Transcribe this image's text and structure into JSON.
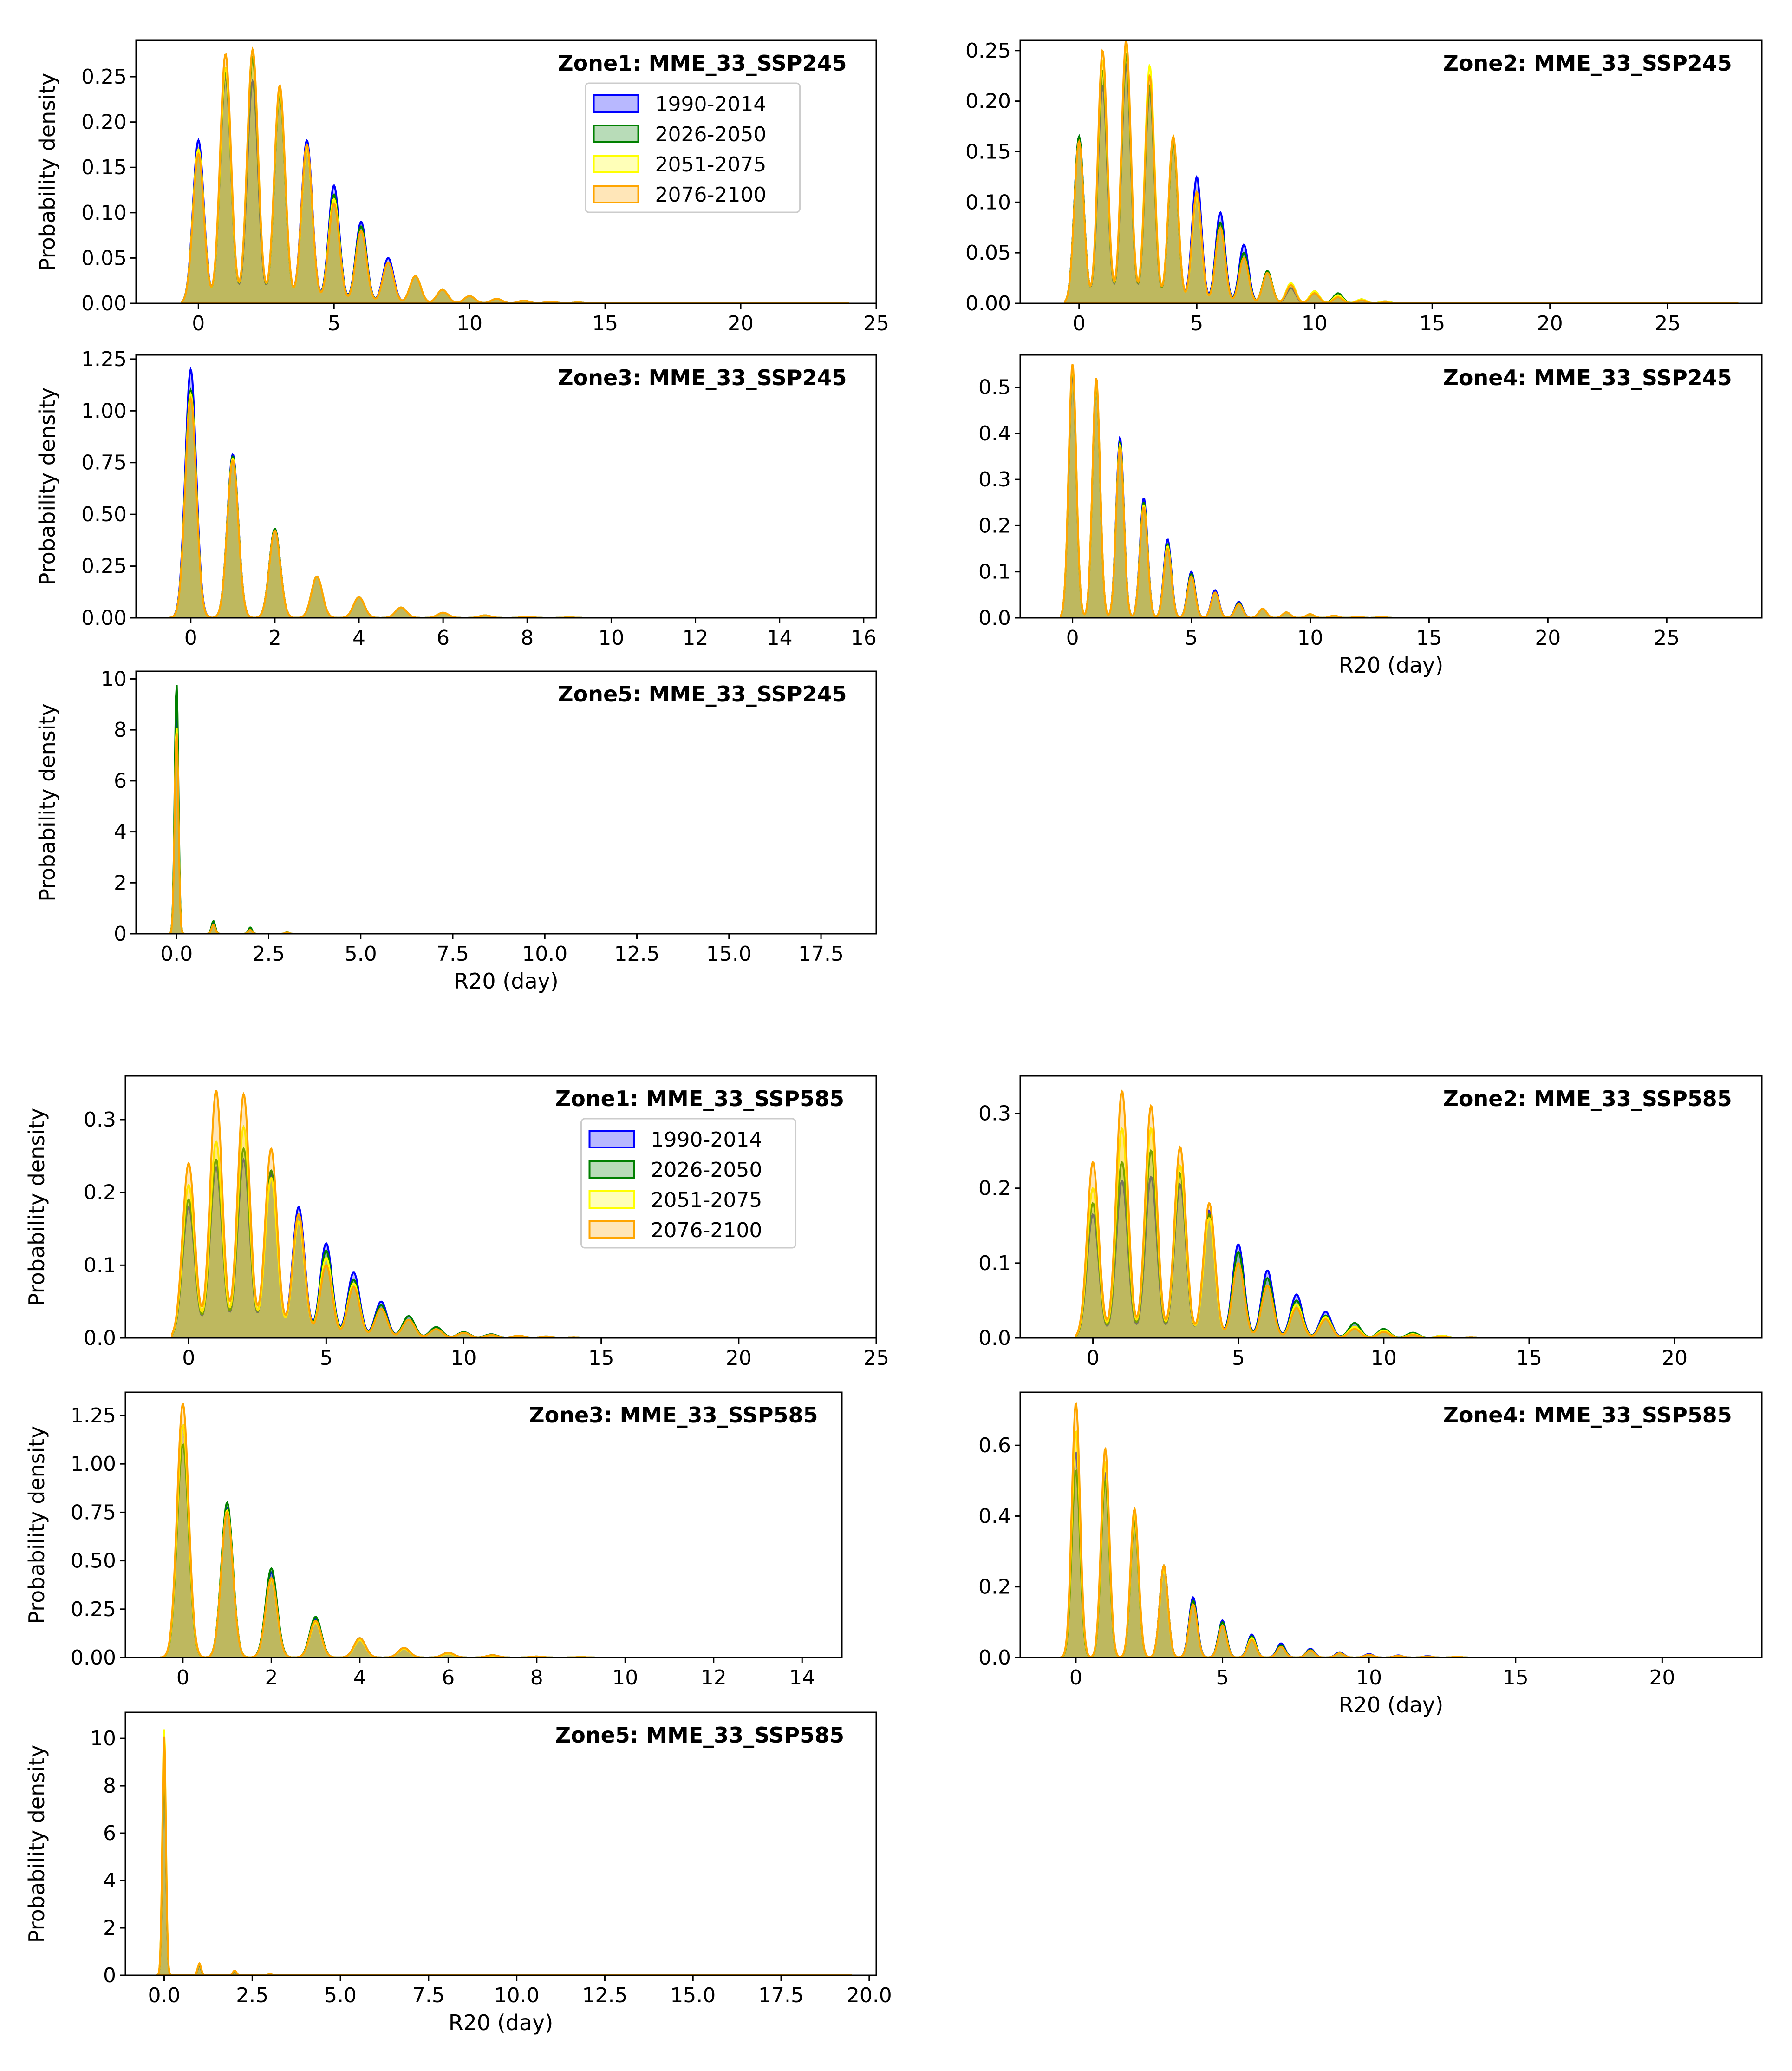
{
  "colors": {
    "1990-2014": "#0000ff",
    "2026-2050": "#008000",
    "2051-2075": "#ffff00",
    "2076-2100": "#ffa500"
  },
  "chart_data": [
    {
      "type": "area",
      "title": "Zone1: MME_33_SSP245",
      "xlabel": "",
      "ylabel": "Probability density",
      "xlim": [
        -2.3,
        25
      ],
      "ylim": [
        0,
        0.29
      ],
      "xticks": [
        0,
        5,
        10,
        15,
        20,
        25
      ],
      "yticks": [
        0.0,
        0.05,
        0.1,
        0.15,
        0.2,
        0.25
      ],
      "ytick_decimals": 2,
      "legend": "top-right",
      "xmin": -0.6,
      "xmax": 24,
      "sigma": 0.2,
      "x": [
        0,
        1,
        2,
        3,
        4,
        5,
        6,
        7,
        8,
        9,
        10,
        11,
        12,
        13,
        14
      ],
      "series": [
        {
          "name": "1990-2014",
          "values": [
            0.18,
            0.25,
            0.245,
            0.23,
            0.18,
            0.13,
            0.09,
            0.05,
            0.03,
            0.015,
            0.008,
            0.005,
            0.003,
            0.002,
            0.001
          ]
        },
        {
          "name": "2026-2050",
          "values": [
            0.17,
            0.255,
            0.27,
            0.23,
            0.17,
            0.12,
            0.085,
            0.045,
            0.03,
            0.015,
            0.008,
            0.005,
            0.003,
            0.002,
            0.001
          ]
        },
        {
          "name": "2051-2075",
          "values": [
            0.17,
            0.26,
            0.28,
            0.235,
            0.17,
            0.115,
            0.08,
            0.045,
            0.03,
            0.015,
            0.008,
            0.005,
            0.003,
            0.002,
            0.001
          ]
        },
        {
          "name": "2076-2100",
          "values": [
            0.165,
            0.275,
            0.28,
            0.24,
            0.175,
            0.11,
            0.08,
            0.045,
            0.03,
            0.015,
            0.008,
            0.005,
            0.003,
            0.002,
            0.001
          ]
        }
      ]
    },
    {
      "type": "area",
      "title": "Zone2: MME_33_SSP245",
      "xlabel": "",
      "ylabel": "",
      "xlim": [
        -2.5,
        29
      ],
      "ylim": [
        0,
        0.26
      ],
      "xticks": [
        0,
        5,
        10,
        15,
        20,
        25
      ],
      "yticks": [
        0.0,
        0.05,
        0.1,
        0.15,
        0.2,
        0.25
      ],
      "ytick_decimals": 2,
      "legend": "none",
      "xmin": -0.6,
      "xmax": 28,
      "sigma": 0.2,
      "x": [
        0,
        1,
        2,
        3,
        4,
        5,
        6,
        7,
        8,
        9,
        10,
        11,
        12,
        13
      ],
      "series": [
        {
          "name": "1990-2014",
          "values": [
            0.165,
            0.215,
            0.235,
            0.21,
            0.16,
            0.125,
            0.09,
            0.058,
            0.03,
            0.015,
            0.01,
            0.006,
            0.003,
            0.001
          ]
        },
        {
          "name": "2026-2050",
          "values": [
            0.165,
            0.23,
            0.245,
            0.215,
            0.16,
            0.11,
            0.08,
            0.05,
            0.032,
            0.02,
            0.012,
            0.01,
            0.004,
            0.002
          ]
        },
        {
          "name": "2051-2075",
          "values": [
            0.16,
            0.24,
            0.255,
            0.235,
            0.165,
            0.105,
            0.075,
            0.045,
            0.03,
            0.02,
            0.012,
            0.008,
            0.004,
            0.002
          ]
        },
        {
          "name": "2076-2100",
          "values": [
            0.16,
            0.25,
            0.26,
            0.225,
            0.165,
            0.11,
            0.075,
            0.045,
            0.03,
            0.018,
            0.01,
            0.006,
            0.003,
            0.001
          ]
        }
      ]
    },
    {
      "type": "area",
      "title": "Zone3: MME_33_SSP245",
      "xlabel": "",
      "ylabel": "Probability density",
      "xlim": [
        -1.3,
        16.3
      ],
      "ylim": [
        0,
        1.27
      ],
      "xticks": [
        0,
        2,
        4,
        6,
        8,
        10,
        12,
        14,
        16
      ],
      "yticks": [
        0.0,
        0.25,
        0.5,
        0.75,
        1.0,
        1.25
      ],
      "ytick_decimals": 2,
      "legend": "none",
      "xmin": -0.5,
      "xmax": 15.5,
      "sigma": 0.13,
      "x": [
        0,
        1,
        2,
        3,
        4,
        5,
        6,
        7,
        8,
        9
      ],
      "series": [
        {
          "name": "1990-2014",
          "values": [
            1.2,
            0.79,
            0.43,
            0.2,
            0.1,
            0.05,
            0.025,
            0.012,
            0.005,
            0.002
          ]
        },
        {
          "name": "2026-2050",
          "values": [
            1.1,
            0.78,
            0.43,
            0.2,
            0.1,
            0.05,
            0.025,
            0.012,
            0.005,
            0.002
          ]
        },
        {
          "name": "2051-2075",
          "values": [
            1.08,
            0.77,
            0.42,
            0.2,
            0.1,
            0.05,
            0.025,
            0.012,
            0.005,
            0.002
          ]
        },
        {
          "name": "2076-2100",
          "values": [
            1.06,
            0.76,
            0.42,
            0.2,
            0.1,
            0.05,
            0.025,
            0.012,
            0.005,
            0.002
          ]
        }
      ]
    },
    {
      "type": "area",
      "title": "Zone4: MME_33_SSP245",
      "xlabel": "R20 (day)",
      "ylabel": "",
      "xlim": [
        -2.2,
        29
      ],
      "ylim": [
        0,
        0.57
      ],
      "xticks": [
        0,
        5,
        10,
        15,
        20,
        25
      ],
      "yticks": [
        0.0,
        0.1,
        0.2,
        0.3,
        0.4,
        0.5
      ],
      "ytick_decimals": 1,
      "legend": "none",
      "xmin": -0.5,
      "xmax": 27.5,
      "sigma": 0.16,
      "x": [
        0,
        1,
        2,
        3,
        4,
        5,
        6,
        7,
        8,
        9,
        10,
        11,
        12,
        13
      ],
      "series": [
        {
          "name": "1990-2014",
          "values": [
            0.53,
            0.51,
            0.39,
            0.26,
            0.17,
            0.1,
            0.06,
            0.035,
            0.02,
            0.012,
            0.008,
            0.005,
            0.003,
            0.002
          ]
        },
        {
          "name": "2026-2050",
          "values": [
            0.54,
            0.51,
            0.38,
            0.25,
            0.16,
            0.095,
            0.055,
            0.032,
            0.02,
            0.012,
            0.008,
            0.005,
            0.003,
            0.002
          ]
        },
        {
          "name": "2051-2075",
          "values": [
            0.545,
            0.515,
            0.375,
            0.245,
            0.155,
            0.09,
            0.055,
            0.03,
            0.02,
            0.012,
            0.008,
            0.005,
            0.003,
            0.002
          ]
        },
        {
          "name": "2076-2100",
          "values": [
            0.55,
            0.52,
            0.37,
            0.24,
            0.15,
            0.09,
            0.055,
            0.03,
            0.02,
            0.012,
            0.008,
            0.005,
            0.003,
            0.002
          ]
        }
      ]
    },
    {
      "type": "area",
      "title": "Zone5: MME_33_SSP245",
      "xlabel": "R20 (day)",
      "ylabel": "Probability density",
      "xlim": [
        -1.1,
        19
      ],
      "ylim": [
        0,
        10.3
      ],
      "xticks": [
        0.0,
        2.5,
        5.0,
        7.5,
        10.0,
        12.5,
        15.0,
        17.5
      ],
      "yticks": [
        0,
        2,
        4,
        6,
        8,
        10
      ],
      "ytick_decimals": 0,
      "xtick_decimals": 1,
      "legend": "none",
      "xmin": -0.2,
      "xmax": 18.2,
      "sigma": 0.05,
      "x": [
        0,
        1,
        2,
        3
      ],
      "series": [
        {
          "name": "1990-2014",
          "values": [
            8.6,
            0.4,
            0.2,
            0.05
          ]
        },
        {
          "name": "2026-2050",
          "values": [
            9.8,
            0.5,
            0.25,
            0.06
          ]
        },
        {
          "name": "2051-2075",
          "values": [
            8.1,
            0.35,
            0.15,
            0.05
          ]
        },
        {
          "name": "2076-2100",
          "values": [
            7.9,
            0.35,
            0.15,
            0.05
          ]
        }
      ]
    },
    {
      "type": "area",
      "title": "Zone1: MME_33_SSP585",
      "xlabel": "",
      "ylabel": "Probability density",
      "xlim": [
        -2.3,
        25
      ],
      "ylim": [
        0,
        0.36
      ],
      "xticks": [
        0,
        5,
        10,
        15,
        20,
        25
      ],
      "yticks": [
        0.0,
        0.1,
        0.2,
        0.3
      ],
      "ytick_decimals": 1,
      "legend": "top-right",
      "xmin": -0.6,
      "xmax": 24,
      "sigma": 0.22,
      "x": [
        0,
        1,
        2,
        3,
        4,
        5,
        6,
        7,
        8,
        9,
        10,
        11,
        12,
        13,
        14
      ],
      "series": [
        {
          "name": "1990-2014",
          "values": [
            0.18,
            0.235,
            0.245,
            0.225,
            0.18,
            0.13,
            0.09,
            0.05,
            0.03,
            0.015,
            0.008,
            0.005,
            0.003,
            0.002,
            0.001
          ]
        },
        {
          "name": "2026-2050",
          "values": [
            0.19,
            0.245,
            0.26,
            0.23,
            0.17,
            0.12,
            0.08,
            0.045,
            0.03,
            0.015,
            0.008,
            0.005,
            0.003,
            0.002,
            0.001
          ]
        },
        {
          "name": "2051-2075",
          "values": [
            0.21,
            0.27,
            0.29,
            0.22,
            0.16,
            0.11,
            0.075,
            0.04,
            0.025,
            0.012,
            0.007,
            0.004,
            0.003,
            0.002,
            0.001
          ]
        },
        {
          "name": "2076-2100",
          "values": [
            0.24,
            0.34,
            0.335,
            0.26,
            0.17,
            0.1,
            0.07,
            0.04,
            0.025,
            0.012,
            0.007,
            0.004,
            0.003,
            0.002,
            0.001
          ]
        }
      ]
    },
    {
      "type": "area",
      "title": "Zone2: MME_33_SSP585",
      "xlabel": "",
      "ylabel": "",
      "xlim": [
        -2.5,
        23
      ],
      "ylim": [
        0,
        0.35
      ],
      "xticks": [
        0,
        5,
        10,
        15,
        20
      ],
      "yticks": [
        0.0,
        0.1,
        0.2,
        0.3
      ],
      "ytick_decimals": 1,
      "legend": "none",
      "xmin": -0.6,
      "xmax": 22.5,
      "sigma": 0.2,
      "x": [
        0,
        1,
        2,
        3,
        4,
        5,
        6,
        7,
        8,
        9,
        10,
        11,
        12,
        13
      ],
      "series": [
        {
          "name": "1990-2014",
          "values": [
            0.165,
            0.21,
            0.215,
            0.205,
            0.17,
            0.125,
            0.09,
            0.058,
            0.035,
            0.02,
            0.012,
            0.006,
            0.003,
            0.001
          ]
        },
        {
          "name": "2026-2050",
          "values": [
            0.18,
            0.235,
            0.25,
            0.22,
            0.165,
            0.115,
            0.08,
            0.05,
            0.03,
            0.02,
            0.012,
            0.007,
            0.003,
            0.001
          ]
        },
        {
          "name": "2051-2075",
          "values": [
            0.2,
            0.28,
            0.28,
            0.23,
            0.16,
            0.1,
            0.07,
            0.045,
            0.028,
            0.015,
            0.01,
            0.005,
            0.003,
            0.001
          ]
        },
        {
          "name": "2076-2100",
          "values": [
            0.235,
            0.33,
            0.31,
            0.255,
            0.18,
            0.1,
            0.07,
            0.04,
            0.025,
            0.012,
            0.008,
            0.004,
            0.002,
            0.001
          ]
        }
      ]
    },
    {
      "type": "area",
      "title": "Zone3: MME_33_SSP585",
      "xlabel": "",
      "ylabel": "Probability density",
      "xlim": [
        -1.3,
        14.9
      ],
      "ylim": [
        0,
        1.37
      ],
      "xticks": [
        0,
        2,
        4,
        6,
        8,
        10,
        12,
        14
      ],
      "yticks": [
        0.0,
        0.25,
        0.5,
        0.75,
        1.0,
        1.25
      ],
      "ytick_decimals": 2,
      "legend": "none",
      "xmin": -0.5,
      "xmax": 14.2,
      "sigma": 0.13,
      "x": [
        0,
        1,
        2,
        3,
        4,
        5,
        6,
        7,
        8,
        9
      ],
      "series": [
        {
          "name": "1990-2014",
          "values": [
            1.2,
            0.77,
            0.44,
            0.2,
            0.1,
            0.05,
            0.025,
            0.012,
            0.005,
            0.002
          ]
        },
        {
          "name": "2026-2050",
          "values": [
            1.1,
            0.8,
            0.46,
            0.21,
            0.1,
            0.05,
            0.025,
            0.012,
            0.005,
            0.002
          ]
        },
        {
          "name": "2051-2075",
          "values": [
            1.2,
            0.76,
            0.4,
            0.18,
            0.09,
            0.045,
            0.02,
            0.01,
            0.005,
            0.002
          ]
        },
        {
          "name": "2076-2100",
          "values": [
            1.31,
            0.75,
            0.41,
            0.19,
            0.1,
            0.05,
            0.025,
            0.012,
            0.005,
            0.002
          ]
        }
      ]
    },
    {
      "type": "area",
      "title": "Zone4: MME_33_SSP585",
      "xlabel": "R20 (day)",
      "ylabel": "",
      "xlim": [
        -1.9,
        23.4
      ],
      "ylim": [
        0,
        0.75
      ],
      "xticks": [
        0,
        5,
        10,
        15,
        20
      ],
      "yticks": [
        0.0,
        0.2,
        0.4,
        0.6
      ],
      "ytick_decimals": 1,
      "legend": "none",
      "xmin": -0.5,
      "xmax": 22.5,
      "sigma": 0.14,
      "x": [
        0,
        1,
        2,
        3,
        4,
        5,
        6,
        7,
        8,
        9,
        10,
        11,
        12,
        13
      ],
      "series": [
        {
          "name": "1990-2014",
          "values": [
            0.58,
            0.52,
            0.39,
            0.26,
            0.17,
            0.105,
            0.065,
            0.04,
            0.025,
            0.015,
            0.01,
            0.006,
            0.004,
            0.002
          ]
        },
        {
          "name": "2026-2050",
          "values": [
            0.53,
            0.5,
            0.38,
            0.26,
            0.16,
            0.1,
            0.06,
            0.035,
            0.022,
            0.013,
            0.008,
            0.005,
            0.003,
            0.002
          ]
        },
        {
          "name": "2051-2075",
          "values": [
            0.64,
            0.55,
            0.4,
            0.25,
            0.15,
            0.09,
            0.055,
            0.03,
            0.02,
            0.012,
            0.008,
            0.005,
            0.003,
            0.002
          ]
        },
        {
          "name": "2076-2100",
          "values": [
            0.72,
            0.59,
            0.42,
            0.26,
            0.15,
            0.09,
            0.05,
            0.03,
            0.02,
            0.012,
            0.008,
            0.005,
            0.003,
            0.002
          ]
        }
      ]
    },
    {
      "type": "area",
      "title": "Zone5: MME_33_SSP585",
      "xlabel": "R20 (day)",
      "ylabel": "Probability density",
      "xlim": [
        -1.1,
        20.2
      ],
      "ylim": [
        0,
        11.1
      ],
      "xticks": [
        0.0,
        2.5,
        5.0,
        7.5,
        10.0,
        12.5,
        15.0,
        17.5,
        20.0
      ],
      "yticks": [
        0,
        2,
        4,
        6,
        8,
        10
      ],
      "ytick_decimals": 0,
      "xtick_decimals": 1,
      "legend": "none",
      "xmin": -0.2,
      "xmax": 19.5,
      "sigma": 0.05,
      "x": [
        0,
        1,
        2,
        3
      ],
      "series": [
        {
          "name": "1990-2014",
          "values": [
            9.2,
            0.4,
            0.15,
            0.05
          ]
        },
        {
          "name": "2026-2050",
          "values": [
            9.5,
            0.45,
            0.18,
            0.06
          ]
        },
        {
          "name": "2051-2075",
          "values": [
            10.4,
            0.5,
            0.2,
            0.06
          ]
        },
        {
          "name": "2076-2100",
          "values": [
            10.1,
            0.5,
            0.2,
            0.06
          ]
        }
      ]
    }
  ]
}
